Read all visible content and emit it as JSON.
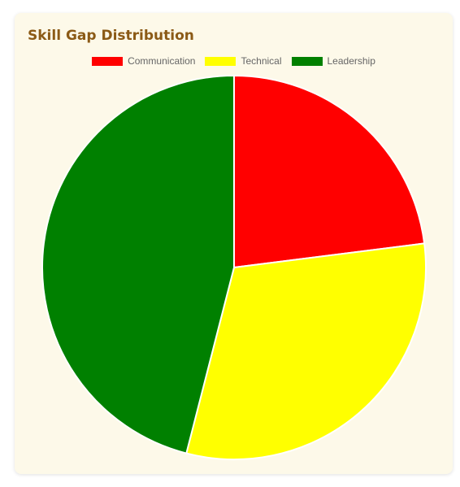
{
  "card": {
    "title": "Skill Gap Distribution"
  },
  "colors": {
    "card_background": "#fdf9e9",
    "title": "#8b5a16",
    "slice_border": "#ffffff"
  },
  "chart_data": {
    "type": "pie",
    "title": "Skill Gap Distribution",
    "legend_position": "top",
    "categories": [
      "Communication",
      "Technical",
      "Leadership"
    ],
    "values": [
      23,
      31,
      46
    ],
    "colors": [
      "#ff0000",
      "#ffff00",
      "#008000"
    ]
  }
}
